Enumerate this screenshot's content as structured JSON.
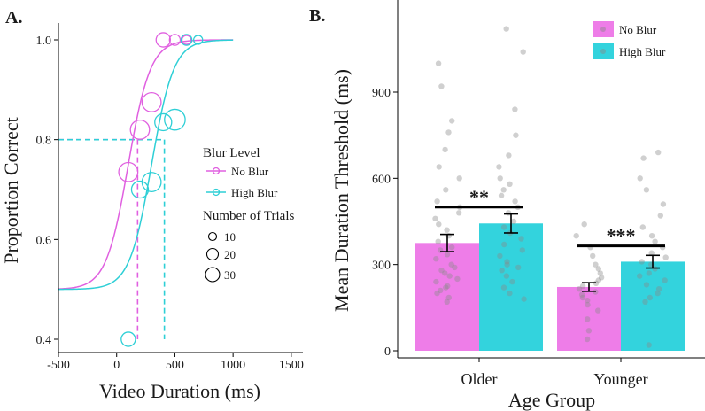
{
  "chart_data": [
    {
      "type": "line",
      "panel_label": "A.",
      "xlabel": "Video Duration (ms)",
      "ylabel": "Proportion Correct",
      "xlim": [
        -500,
        1600
      ],
      "ylim": [
        0.4,
        1.0
      ],
      "x_ticks": [
        -500,
        0,
        500,
        1000,
        1500
      ],
      "x_tick_labels": [
        "-500",
        "0",
        "500",
        "1000",
        "1500"
      ],
      "y_ticks": [
        0.4,
        0.6,
        0.8,
        1.0
      ],
      "y_tick_labels": [
        "0.4",
        "0.6",
        "0.8",
        "1.0"
      ],
      "legend": {
        "title": "Blur Level",
        "entries": [
          "No Blur",
          "High Blur"
        ],
        "size_title": "Number of Trials",
        "size_entries": [
          10,
          20,
          30
        ],
        "size_labels": [
          "10",
          "20",
          "30"
        ]
      },
      "series": [
        {
          "name": "No Blur",
          "color": "#e060e0",
          "curve": {
            "midpoint": 100,
            "scale": 95,
            "lower": 0.5,
            "upper": 1.0
          },
          "threshold_x": 180,
          "points": [
            {
              "x": 100,
              "y": 0.735,
              "n": 20
            },
            {
              "x": 200,
              "y": 0.82,
              "n": 20
            },
            {
              "x": 300,
              "y": 0.875,
              "n": 20
            },
            {
              "x": 400,
              "y": 1.0,
              "n": 10
            },
            {
              "x": 500,
              "y": 1.0,
              "n": 5
            },
            {
              "x": 600,
              "y": 1.0,
              "n": 3
            }
          ]
        },
        {
          "name": "High Blur",
          "color": "#2ecfd6",
          "curve": {
            "midpoint": 300,
            "scale": 95,
            "lower": 0.5,
            "upper": 1.0
          },
          "threshold_x": 410,
          "points": [
            {
              "x": 100,
              "y": 0.4,
              "n": 10
            },
            {
              "x": 200,
              "y": 0.7,
              "n": 15
            },
            {
              "x": 300,
              "y": 0.715,
              "n": 20
            },
            {
              "x": 400,
              "y": 0.835,
              "n": 15
            },
            {
              "x": 500,
              "y": 0.84,
              "n": 24
            },
            {
              "x": 600,
              "y": 1.0,
              "n": 5
            },
            {
              "x": 700,
              "y": 1.0,
              "n": 3
            }
          ]
        }
      ],
      "threshold_level": 0.8
    },
    {
      "type": "bar",
      "panel_label": "B.",
      "xlabel": "Age Group",
      "ylabel": "Mean Duration Threshold (ms)",
      "ylim": [
        -20,
        1130
      ],
      "y_ticks": [
        0,
        300,
        600,
        900
      ],
      "y_tick_labels": [
        "0",
        "300",
        "600",
        "900"
      ],
      "categories": [
        "Older",
        "Younger"
      ],
      "series": [
        {
          "name": "No Blur",
          "color": "#ee7de8",
          "values": [
            375,
            222
          ],
          "errors": [
            30,
            15
          ]
        },
        {
          "name": "High Blur",
          "color": "#33d3dd",
          "values": [
            443,
            310
          ],
          "errors": [
            33,
            22
          ]
        }
      ],
      "significance": [
        {
          "category": "Older",
          "label": "**",
          "y": 500
        },
        {
          "category": "Younger",
          "label": "***",
          "y": 365
        }
      ],
      "legend": {
        "entries": [
          "No Blur",
          "High Blur"
        ]
      },
      "individual_points": [
        [
          170,
          185,
          200,
          210,
          220,
          225,
          240,
          250,
          260,
          270,
          280,
          290,
          300,
          320,
          335,
          350,
          360,
          380,
          400,
          420,
          440,
          460,
          480,
          500,
          520,
          560,
          600,
          640,
          700,
          760,
          800,
          920,
          1000
        ],
        [
          180,
          200,
          220,
          240,
          260,
          280,
          290,
          300,
          310,
          330,
          350,
          370,
          390,
          410,
          430,
          450,
          480,
          500,
          520,
          540,
          560,
          580,
          600,
          640,
          680,
          750,
          840,
          1040,
          1120
        ],
        [
          40,
          70,
          110,
          140,
          160,
          175,
          185,
          195,
          205,
          215,
          225,
          235,
          245,
          255,
          270,
          285,
          300,
          330,
          360,
          400,
          440
        ],
        [
          20,
          170,
          185,
          200,
          215,
          230,
          245,
          260,
          270,
          285,
          300,
          310,
          325,
          340,
          360,
          380,
          400,
          430,
          470,
          510,
          560,
          600,
          670,
          690
        ]
      ]
    }
  ]
}
